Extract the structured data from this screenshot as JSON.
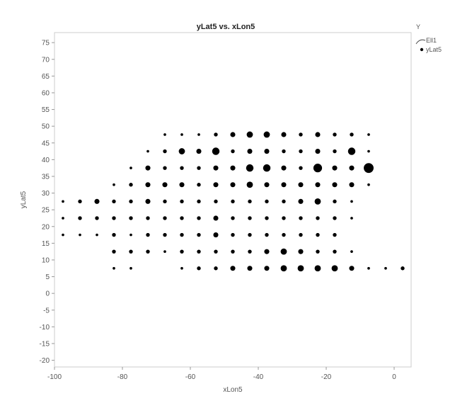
{
  "chart_data": {
    "type": "scatter",
    "title": "yLat5 vs. xLon5",
    "xlabel": "xLon5",
    "ylabel": "yLat5",
    "xlim": [
      -100,
      5
    ],
    "ylim": [
      -22,
      78
    ],
    "x_ticks": [
      -100,
      -80,
      -60,
      -40,
      -20,
      0
    ],
    "y_ticks": [
      -20,
      -15,
      -10,
      -5,
      0,
      5,
      10,
      15,
      20,
      25,
      30,
      35,
      40,
      45,
      50,
      55,
      60,
      65,
      70,
      75
    ],
    "grid": false,
    "legend": {
      "title": "Y",
      "placement": "top-right",
      "entries": [
        {
          "label": "Ell1",
          "marker": "ellipse-arc"
        },
        {
          "label": "yLat5",
          "marker": "dot"
        }
      ]
    },
    "colors": {
      "points": "#000000",
      "frame": "#cccccc",
      "text": "#555555"
    },
    "size_scale": "marker area proportional to point count (relative size 1-7)",
    "series": [
      {
        "name": "yLat5",
        "points": [
          {
            "x": -67.5,
            "y": 47.5,
            "size": 1
          },
          {
            "x": -62.5,
            "y": 47.5,
            "size": 1
          },
          {
            "x": -57.5,
            "y": 47.5,
            "size": 1
          },
          {
            "x": -52.5,
            "y": 47.5,
            "size": 2
          },
          {
            "x": -47.5,
            "y": 47.5,
            "size": 3
          },
          {
            "x": -42.5,
            "y": 47.5,
            "size": 4
          },
          {
            "x": -37.5,
            "y": 47.5,
            "size": 4
          },
          {
            "x": -32.5,
            "y": 47.5,
            "size": 3
          },
          {
            "x": -27.5,
            "y": 47.5,
            "size": 2
          },
          {
            "x": -22.5,
            "y": 47.5,
            "size": 3
          },
          {
            "x": -17.5,
            "y": 47.5,
            "size": 2
          },
          {
            "x": -12.5,
            "y": 47.5,
            "size": 2
          },
          {
            "x": -7.5,
            "y": 47.5,
            "size": 1
          },
          {
            "x": -72.5,
            "y": 42.5,
            "size": 1
          },
          {
            "x": -67.5,
            "y": 42.5,
            "size": 2
          },
          {
            "x": -62.5,
            "y": 42.5,
            "size": 4
          },
          {
            "x": -57.5,
            "y": 42.5,
            "size": 3
          },
          {
            "x": -52.5,
            "y": 42.5,
            "size": 5
          },
          {
            "x": -47.5,
            "y": 42.5,
            "size": 2
          },
          {
            "x": -42.5,
            "y": 42.5,
            "size": 3
          },
          {
            "x": -37.5,
            "y": 42.5,
            "size": 3
          },
          {
            "x": -32.5,
            "y": 42.5,
            "size": 2
          },
          {
            "x": -27.5,
            "y": 42.5,
            "size": 2
          },
          {
            "x": -22.5,
            "y": 42.5,
            "size": 3
          },
          {
            "x": -17.5,
            "y": 42.5,
            "size": 2
          },
          {
            "x": -12.5,
            "y": 42.5,
            "size": 5
          },
          {
            "x": -7.5,
            "y": 42.5,
            "size": 1
          },
          {
            "x": -77.5,
            "y": 37.5,
            "size": 1
          },
          {
            "x": -72.5,
            "y": 37.5,
            "size": 3
          },
          {
            "x": -67.5,
            "y": 37.5,
            "size": 2
          },
          {
            "x": -62.5,
            "y": 37.5,
            "size": 2
          },
          {
            "x": -57.5,
            "y": 37.5,
            "size": 2
          },
          {
            "x": -52.5,
            "y": 37.5,
            "size": 3
          },
          {
            "x": -47.5,
            "y": 37.5,
            "size": 3
          },
          {
            "x": -42.5,
            "y": 37.5,
            "size": 5
          },
          {
            "x": -37.5,
            "y": 37.5,
            "size": 5
          },
          {
            "x": -32.5,
            "y": 37.5,
            "size": 3
          },
          {
            "x": -27.5,
            "y": 37.5,
            "size": 2
          },
          {
            "x": -22.5,
            "y": 37.5,
            "size": 6
          },
          {
            "x": -17.5,
            "y": 37.5,
            "size": 3
          },
          {
            "x": -12.5,
            "y": 37.5,
            "size": 3
          },
          {
            "x": -7.5,
            "y": 37.5,
            "size": 7
          },
          {
            "x": -82.5,
            "y": 32.5,
            "size": 1
          },
          {
            "x": -77.5,
            "y": 32.5,
            "size": 2
          },
          {
            "x": -72.5,
            "y": 32.5,
            "size": 3
          },
          {
            "x": -67.5,
            "y": 32.5,
            "size": 3
          },
          {
            "x": -62.5,
            "y": 32.5,
            "size": 3
          },
          {
            "x": -57.5,
            "y": 32.5,
            "size": 2
          },
          {
            "x": -52.5,
            "y": 32.5,
            "size": 3
          },
          {
            "x": -47.5,
            "y": 32.5,
            "size": 3
          },
          {
            "x": -42.5,
            "y": 32.5,
            "size": 4
          },
          {
            "x": -37.5,
            "y": 32.5,
            "size": 3
          },
          {
            "x": -32.5,
            "y": 32.5,
            "size": 3
          },
          {
            "x": -27.5,
            "y": 32.5,
            "size": 3
          },
          {
            "x": -22.5,
            "y": 32.5,
            "size": 3
          },
          {
            "x": -17.5,
            "y": 32.5,
            "size": 3
          },
          {
            "x": -12.5,
            "y": 32.5,
            "size": 3
          },
          {
            "x": -7.5,
            "y": 32.5,
            "size": 1
          },
          {
            "x": -97.5,
            "y": 27.5,
            "size": 1
          },
          {
            "x": -92.5,
            "y": 27.5,
            "size": 2
          },
          {
            "x": -87.5,
            "y": 27.5,
            "size": 3
          },
          {
            "x": -82.5,
            "y": 27.5,
            "size": 2
          },
          {
            "x": -77.5,
            "y": 27.5,
            "size": 2
          },
          {
            "x": -72.5,
            "y": 27.5,
            "size": 3
          },
          {
            "x": -67.5,
            "y": 27.5,
            "size": 2
          },
          {
            "x": -62.5,
            "y": 27.5,
            "size": 2
          },
          {
            "x": -57.5,
            "y": 27.5,
            "size": 2
          },
          {
            "x": -52.5,
            "y": 27.5,
            "size": 2
          },
          {
            "x": -47.5,
            "y": 27.5,
            "size": 2
          },
          {
            "x": -42.5,
            "y": 27.5,
            "size": 2
          },
          {
            "x": -37.5,
            "y": 27.5,
            "size": 2
          },
          {
            "x": -32.5,
            "y": 27.5,
            "size": 2
          },
          {
            "x": -27.5,
            "y": 27.5,
            "size": 3
          },
          {
            "x": -22.5,
            "y": 27.5,
            "size": 4
          },
          {
            "x": -17.5,
            "y": 27.5,
            "size": 2
          },
          {
            "x": -12.5,
            "y": 27.5,
            "size": 1
          },
          {
            "x": -97.5,
            "y": 22.5,
            "size": 1
          },
          {
            "x": -92.5,
            "y": 22.5,
            "size": 2
          },
          {
            "x": -87.5,
            "y": 22.5,
            "size": 2
          },
          {
            "x": -82.5,
            "y": 22.5,
            "size": 2
          },
          {
            "x": -77.5,
            "y": 22.5,
            "size": 2
          },
          {
            "x": -72.5,
            "y": 22.5,
            "size": 2
          },
          {
            "x": -67.5,
            "y": 22.5,
            "size": 2
          },
          {
            "x": -62.5,
            "y": 22.5,
            "size": 2
          },
          {
            "x": -57.5,
            "y": 22.5,
            "size": 2
          },
          {
            "x": -52.5,
            "y": 22.5,
            "size": 3
          },
          {
            "x": -47.5,
            "y": 22.5,
            "size": 2
          },
          {
            "x": -42.5,
            "y": 22.5,
            "size": 2
          },
          {
            "x": -37.5,
            "y": 22.5,
            "size": 2
          },
          {
            "x": -32.5,
            "y": 22.5,
            "size": 2
          },
          {
            "x": -27.5,
            "y": 22.5,
            "size": 2
          },
          {
            "x": -22.5,
            "y": 22.5,
            "size": 2
          },
          {
            "x": -17.5,
            "y": 22.5,
            "size": 2
          },
          {
            "x": -12.5,
            "y": 22.5,
            "size": 1
          },
          {
            "x": -97.5,
            "y": 17.5,
            "size": 1
          },
          {
            "x": -92.5,
            "y": 17.5,
            "size": 1
          },
          {
            "x": -87.5,
            "y": 17.5,
            "size": 1
          },
          {
            "x": -82.5,
            "y": 17.5,
            "size": 2
          },
          {
            "x": -77.5,
            "y": 17.5,
            "size": 1
          },
          {
            "x": -72.5,
            "y": 17.5,
            "size": 2
          },
          {
            "x": -67.5,
            "y": 17.5,
            "size": 2
          },
          {
            "x": -62.5,
            "y": 17.5,
            "size": 2
          },
          {
            "x": -57.5,
            "y": 17.5,
            "size": 2
          },
          {
            "x": -52.5,
            "y": 17.5,
            "size": 3
          },
          {
            "x": -47.5,
            "y": 17.5,
            "size": 2
          },
          {
            "x": -42.5,
            "y": 17.5,
            "size": 2
          },
          {
            "x": -37.5,
            "y": 17.5,
            "size": 2
          },
          {
            "x": -32.5,
            "y": 17.5,
            "size": 2
          },
          {
            "x": -27.5,
            "y": 17.5,
            "size": 2
          },
          {
            "x": -22.5,
            "y": 17.5,
            "size": 2
          },
          {
            "x": -17.5,
            "y": 17.5,
            "size": 2
          },
          {
            "x": -82.5,
            "y": 12.5,
            "size": 2
          },
          {
            "x": -77.5,
            "y": 12.5,
            "size": 2
          },
          {
            "x": -72.5,
            "y": 12.5,
            "size": 2
          },
          {
            "x": -67.5,
            "y": 12.5,
            "size": 1
          },
          {
            "x": -62.5,
            "y": 12.5,
            "size": 2
          },
          {
            "x": -57.5,
            "y": 12.5,
            "size": 2
          },
          {
            "x": -52.5,
            "y": 12.5,
            "size": 2
          },
          {
            "x": -47.5,
            "y": 12.5,
            "size": 2
          },
          {
            "x": -42.5,
            "y": 12.5,
            "size": 2
          },
          {
            "x": -37.5,
            "y": 12.5,
            "size": 3
          },
          {
            "x": -32.5,
            "y": 12.5,
            "size": 4
          },
          {
            "x": -27.5,
            "y": 12.5,
            "size": 3
          },
          {
            "x": -22.5,
            "y": 12.5,
            "size": 2
          },
          {
            "x": -17.5,
            "y": 12.5,
            "size": 2
          },
          {
            "x": -12.5,
            "y": 12.5,
            "size": 1
          },
          {
            "x": -82.5,
            "y": 7.5,
            "size": 1
          },
          {
            "x": -77.5,
            "y": 7.5,
            "size": 1
          },
          {
            "x": -62.5,
            "y": 7.5,
            "size": 1
          },
          {
            "x": -57.5,
            "y": 7.5,
            "size": 2
          },
          {
            "x": -52.5,
            "y": 7.5,
            "size": 2
          },
          {
            "x": -47.5,
            "y": 7.5,
            "size": 3
          },
          {
            "x": -42.5,
            "y": 7.5,
            "size": 3
          },
          {
            "x": -37.5,
            "y": 7.5,
            "size": 3
          },
          {
            "x": -32.5,
            "y": 7.5,
            "size": 4
          },
          {
            "x": -27.5,
            "y": 7.5,
            "size": 4
          },
          {
            "x": -22.5,
            "y": 7.5,
            "size": 4
          },
          {
            "x": -17.5,
            "y": 7.5,
            "size": 4
          },
          {
            "x": -12.5,
            "y": 7.5,
            "size": 3
          },
          {
            "x": -7.5,
            "y": 7.5,
            "size": 1
          },
          {
            "x": -2.5,
            "y": 7.5,
            "size": 1
          },
          {
            "x": 2.5,
            "y": 7.5,
            "size": 2
          }
        ]
      }
    ]
  }
}
